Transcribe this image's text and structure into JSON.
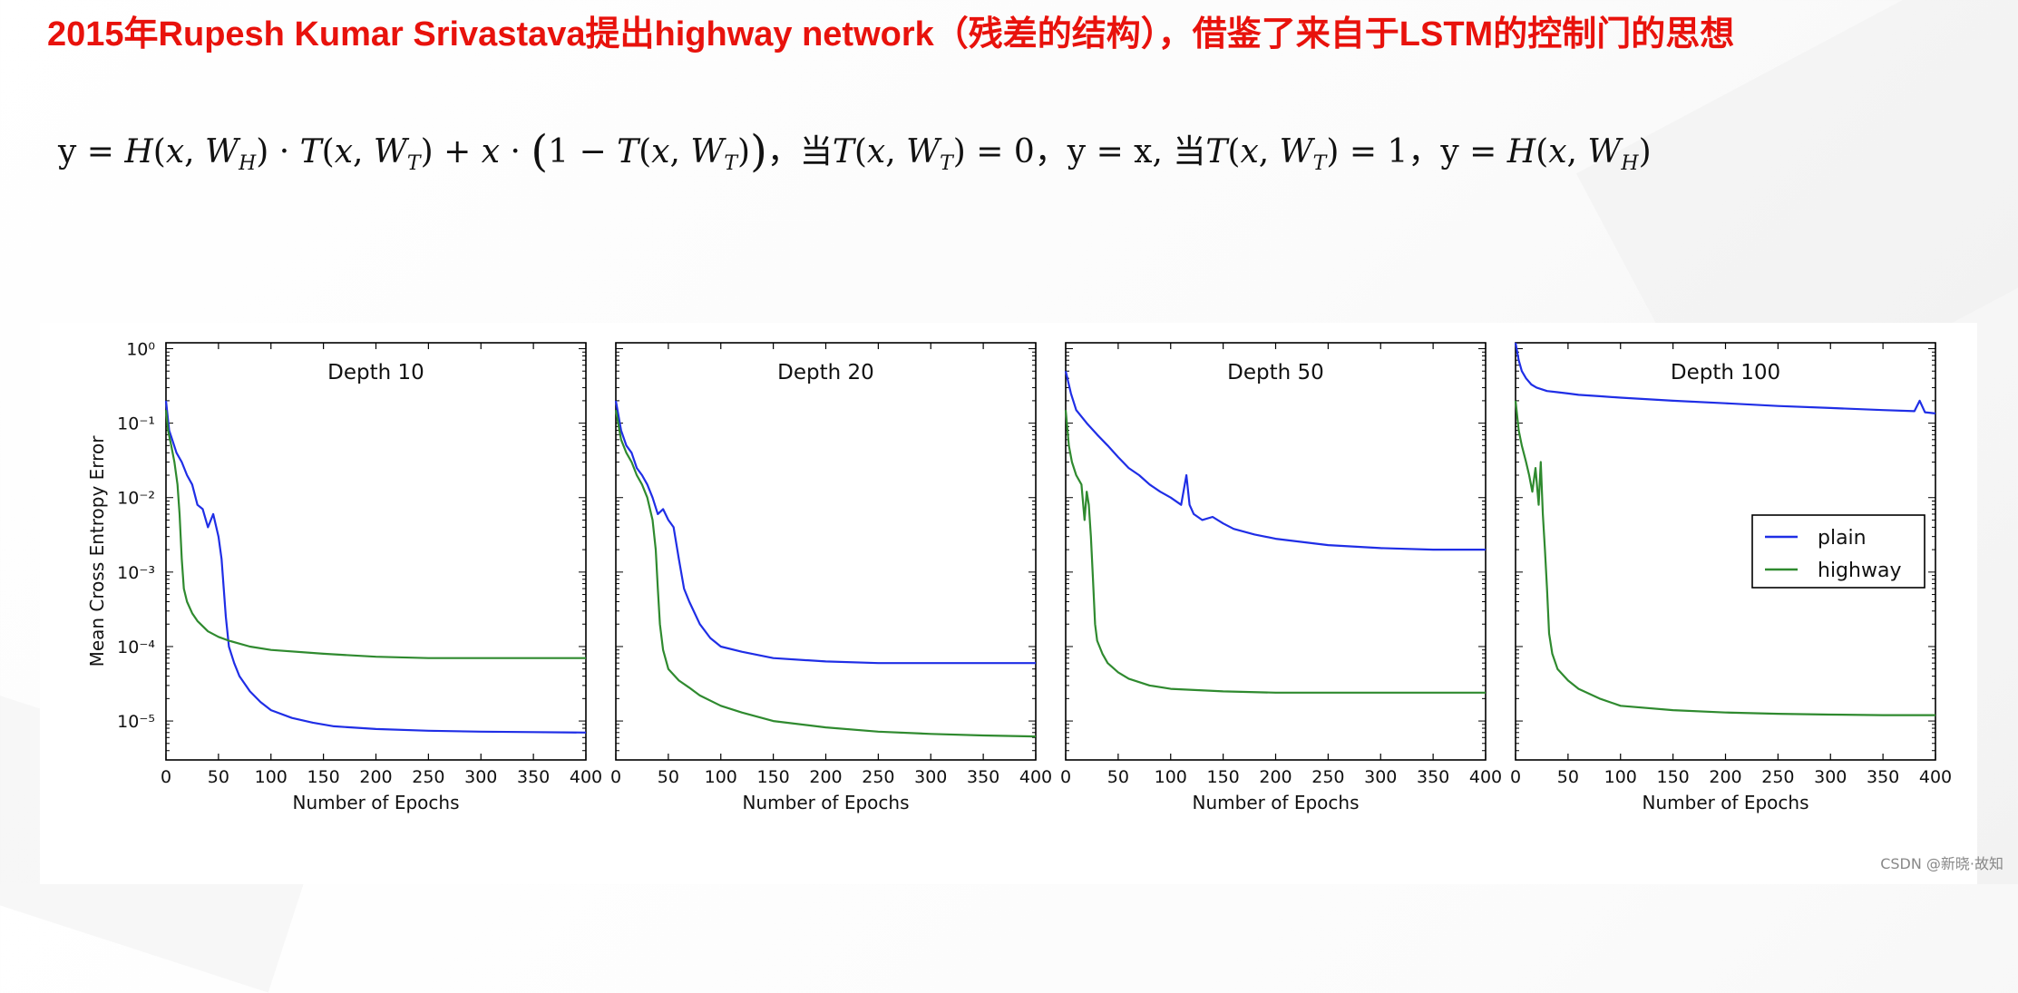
{
  "title": "2015年Rupesh Kumar Srivastava提出highway network（残差的结构），借鉴了来自于LSTM的控制门的思想",
  "formula": {
    "eq1_lhs": "y = ",
    "cond1_prefix": "，当",
    "cond1_result": "，y = x,",
    "cond2_prefix": " 当",
    "cond2_result": "，y = "
  },
  "watermark": "CSDN @新晓·故知",
  "chart_data": [
    {
      "type": "line",
      "title": "Depth 10",
      "xlabel": "Number of Epochs",
      "ylabel": "Mean Cross Entropy Error",
      "xlim": [
        0,
        400
      ],
      "ylim": [
        3e-06,
        1.2
      ],
      "yscale": "log",
      "xticks": [
        "0",
        "50",
        "100",
        "150",
        "200",
        "250",
        "300",
        "350",
        "400"
      ],
      "yticks": [
        1e-05,
        0.0001,
        0.001,
        0.01,
        0.1,
        1
      ],
      "series": [
        {
          "name": "plain",
          "color": "#1f2ee6",
          "x": [
            0,
            3,
            6,
            10,
            15,
            20,
            25,
            30,
            35,
            40,
            45,
            50,
            53,
            55,
            57,
            60,
            65,
            70,
            80,
            90,
            100,
            120,
            140,
            160,
            200,
            250,
            300,
            350,
            400
          ],
          "y": [
            0.2,
            0.08,
            0.06,
            0.04,
            0.03,
            0.02,
            0.015,
            0.008,
            0.007,
            0.004,
            0.006,
            0.003,
            0.0015,
            0.0006,
            0.00025,
            0.0001,
            6e-05,
            4e-05,
            2.5e-05,
            1.8e-05,
            1.4e-05,
            1.1e-05,
            9.5e-06,
            8.5e-06,
            7.8e-06,
            7.4e-06,
            7.2e-06,
            7.1e-06,
            7e-06
          ]
        },
        {
          "name": "highway",
          "color": "#2f8a2f",
          "x": [
            0,
            2,
            5,
            8,
            11,
            13,
            15,
            17,
            20,
            25,
            30,
            40,
            50,
            60,
            80,
            100,
            150,
            200,
            250,
            300,
            350,
            400
          ],
          "y": [
            0.15,
            0.08,
            0.05,
            0.03,
            0.015,
            0.006,
            0.0015,
            0.0006,
            0.0004,
            0.00028,
            0.00022,
            0.00016,
            0.000135,
            0.00012,
            0.0001,
            9e-05,
            8e-05,
            7.3e-05,
            7e-05,
            7e-05,
            7e-05,
            7e-05
          ]
        }
      ]
    },
    {
      "type": "line",
      "title": "Depth 20",
      "xlabel": "Number of Epochs",
      "xlim": [
        0,
        400
      ],
      "ylim": [
        3e-06,
        1.2
      ],
      "yscale": "log",
      "xticks": [
        "0",
        "50",
        "100",
        "150",
        "200",
        "250",
        "300",
        "350",
        "400"
      ],
      "series": [
        {
          "name": "plain",
          "color": "#1f2ee6",
          "x": [
            0,
            5,
            10,
            15,
            20,
            25,
            30,
            35,
            40,
            45,
            50,
            55,
            60,
            65,
            70,
            80,
            90,
            100,
            120,
            150,
            200,
            250,
            300,
            350,
            400
          ],
          "y": [
            0.2,
            0.08,
            0.05,
            0.04,
            0.025,
            0.02,
            0.015,
            0.01,
            0.006,
            0.007,
            0.005,
            0.004,
            0.0015,
            0.0006,
            0.0004,
            0.0002,
            0.00013,
            0.0001,
            8.5e-05,
            7e-05,
            6.3e-05,
            6e-05,
            6e-05,
            6e-05,
            6e-05
          ]
        },
        {
          "name": "highway",
          "color": "#2f8a2f",
          "x": [
            0,
            5,
            10,
            15,
            20,
            25,
            30,
            35,
            38,
            40,
            42,
            45,
            50,
            60,
            70,
            80,
            100,
            120,
            150,
            200,
            250,
            300,
            350,
            400
          ],
          "y": [
            0.15,
            0.06,
            0.04,
            0.03,
            0.02,
            0.015,
            0.01,
            0.005,
            0.002,
            0.0006,
            0.0002,
            9e-05,
            5e-05,
            3.5e-05,
            2.8e-05,
            2.2e-05,
            1.6e-05,
            1.3e-05,
            1e-05,
            8.2e-06,
            7.2e-06,
            6.7e-06,
            6.4e-06,
            6.2e-06
          ]
        }
      ]
    },
    {
      "type": "line",
      "title": "Depth 50",
      "xlabel": "Number of Epochs",
      "xlim": [
        0,
        400
      ],
      "ylim": [
        3e-06,
        1.2
      ],
      "yscale": "log",
      "xticks": [
        "0",
        "50",
        "100",
        "150",
        "200",
        "250",
        "300",
        "350",
        "400"
      ],
      "series": [
        {
          "name": "plain",
          "color": "#1f2ee6",
          "x": [
            0,
            5,
            10,
            20,
            30,
            40,
            50,
            60,
            70,
            80,
            90,
            100,
            110,
            115,
            118,
            122,
            130,
            140,
            150,
            160,
            180,
            200,
            250,
            300,
            350,
            400
          ],
          "y": [
            0.5,
            0.25,
            0.15,
            0.1,
            0.07,
            0.05,
            0.035,
            0.025,
            0.02,
            0.015,
            0.012,
            0.01,
            0.008,
            0.02,
            0.008,
            0.006,
            0.005,
            0.0055,
            0.0045,
            0.0038,
            0.0032,
            0.0028,
            0.0023,
            0.0021,
            0.002,
            0.002
          ]
        },
        {
          "name": "highway",
          "color": "#2f8a2f",
          "x": [
            0,
            3,
            6,
            10,
            15,
            18,
            20,
            22,
            24,
            26,
            28,
            30,
            35,
            40,
            50,
            60,
            80,
            100,
            150,
            200,
            250,
            300,
            350,
            400
          ],
          "y": [
            0.15,
            0.05,
            0.03,
            0.02,
            0.015,
            0.005,
            0.012,
            0.008,
            0.003,
            0.0008,
            0.0002,
            0.00012,
            8e-05,
            6e-05,
            4.5e-05,
            3.7e-05,
            3e-05,
            2.7e-05,
            2.5e-05,
            2.4e-05,
            2.4e-05,
            2.4e-05,
            2.4e-05,
            2.4e-05
          ]
        }
      ]
    },
    {
      "type": "line",
      "title": "Depth 100",
      "xlabel": "Number of Epochs",
      "xlim": [
        0,
        400
      ],
      "ylim": [
        3e-06,
        1.2
      ],
      "yscale": "log",
      "xticks": [
        "0",
        "50",
        "100",
        "150",
        "200",
        "250",
        "300",
        "350",
        "400"
      ],
      "series": [
        {
          "name": "plain",
          "color": "#1f2ee6",
          "x": [
            0,
            3,
            6,
            10,
            15,
            20,
            30,
            40,
            50,
            60,
            80,
            100,
            150,
            200,
            250,
            300,
            350,
            380,
            385,
            390,
            400
          ],
          "y": [
            1.2,
            0.7,
            0.5,
            0.4,
            0.33,
            0.3,
            0.27,
            0.26,
            0.25,
            0.24,
            0.23,
            0.22,
            0.2,
            0.185,
            0.17,
            0.16,
            0.15,
            0.145,
            0.2,
            0.14,
            0.135
          ]
        },
        {
          "name": "highway",
          "color": "#2f8a2f",
          "x": [
            0,
            3,
            6,
            10,
            13,
            16,
            19,
            22,
            24,
            26,
            28,
            30,
            32,
            35,
            40,
            50,
            60,
            80,
            100,
            150,
            200,
            250,
            300,
            350,
            400
          ],
          "y": [
            0.2,
            0.08,
            0.05,
            0.03,
            0.02,
            0.012,
            0.025,
            0.008,
            0.03,
            0.006,
            0.002,
            0.0006,
            0.00015,
            8e-05,
            5e-05,
            3.5e-05,
            2.7e-05,
            2e-05,
            1.6e-05,
            1.4e-05,
            1.3e-05,
            1.25e-05,
            1.22e-05,
            1.2e-05,
            1.2e-05
          ]
        }
      ]
    }
  ],
  "legend": {
    "placement": "center-right",
    "entries": [
      {
        "label": "plain",
        "color": "#1f2ee6"
      },
      {
        "label": "highway",
        "color": "#2f8a2f"
      }
    ]
  }
}
